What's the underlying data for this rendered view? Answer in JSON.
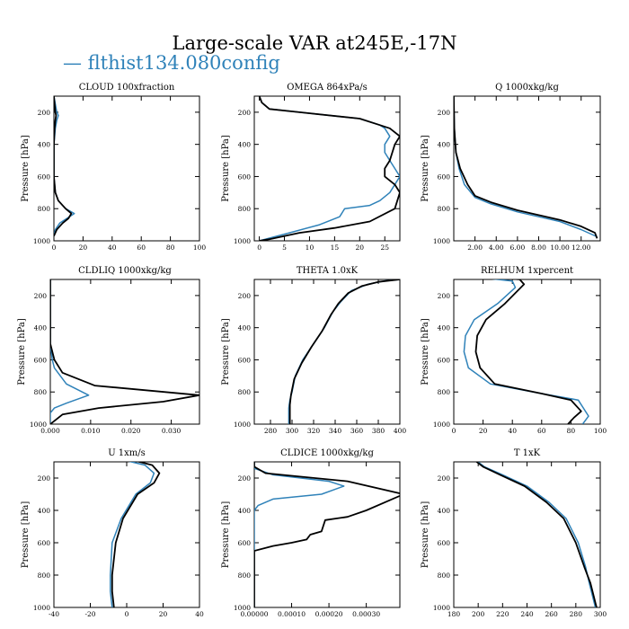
{
  "title": "Large-scale VAR at245E,-17N",
  "legend_label": "— flthist134.080config",
  "colors": {
    "series_a": "#2f82b9",
    "series_b": "#000000"
  },
  "chart_data": [
    {
      "type": "line",
      "title": "CLOUD  100xfraction",
      "ylabel": "Pressure [hPa]",
      "xlim": [
        0,
        100
      ],
      "ylim": [
        1000,
        100
      ],
      "ylog": false,
      "xticks": [
        0,
        20,
        40,
        60,
        80,
        100
      ],
      "xtick_labels": [
        "0",
        "20",
        "40",
        "60",
        "80",
        "100"
      ],
      "yticks": [
        200,
        400,
        600,
        800,
        1000
      ],
      "ytick_labels": [
        "200",
        "400",
        "600",
        "800",
        "1000"
      ],
      "grid": false,
      "series": [
        {
          "name": "flthist134.080config",
          "x": [
            0,
            1,
            2,
            3,
            2,
            1,
            0,
            0,
            1,
            3,
            8,
            14,
            9,
            4,
            1,
            0
          ],
          "y": [
            100,
            150,
            200,
            220,
            250,
            300,
            400,
            600,
            700,
            750,
            800,
            830,
            860,
            890,
            930,
            970
          ]
        },
        {
          "x": [
            0,
            0.5,
            1,
            1.5,
            1,
            0.5,
            0,
            0,
            1,
            3,
            8,
            12,
            10,
            6,
            2,
            0
          ],
          "y": [
            100,
            150,
            200,
            220,
            250,
            300,
            400,
            600,
            700,
            750,
            800,
            830,
            860,
            890,
            930,
            970
          ]
        }
      ]
    },
    {
      "type": "line",
      "title": "OMEGA  864xPa/s",
      "ylabel": "Pressure [hPa]",
      "xlim": [
        -1,
        28
      ],
      "ylim": [
        1000,
        100
      ],
      "xticks": [
        0,
        5,
        10,
        15,
        20,
        25
      ],
      "xtick_labels": [
        "0",
        "5",
        "10",
        "15",
        "20",
        "25"
      ],
      "yticks": [
        200,
        400,
        600,
        800,
        1000
      ],
      "ytick_labels": [
        "200",
        "400",
        "600",
        "800",
        "1000"
      ],
      "grid": false,
      "series": [
        {
          "x": [
            0,
            0.5,
            2,
            8,
            20,
            24,
            25,
            26,
            25,
            25,
            26,
            28,
            26,
            24,
            22,
            17,
            16,
            12,
            6,
            0
          ],
          "y": [
            100,
            140,
            180,
            200,
            240,
            280,
            300,
            350,
            400,
            450,
            500,
            600,
            700,
            750,
            780,
            800,
            850,
            900,
            950,
            1000
          ]
        },
        {
          "x": [
            0,
            0.5,
            2,
            8,
            20,
            24,
            26,
            28,
            27,
            26,
            25,
            25,
            27,
            28,
            27,
            22,
            15,
            8,
            2,
            0
          ],
          "y": [
            100,
            140,
            180,
            200,
            240,
            280,
            300,
            350,
            400,
            500,
            550,
            600,
            650,
            700,
            800,
            880,
            920,
            950,
            990,
            1000
          ]
        }
      ]
    },
    {
      "type": "line",
      "title": "Q  1000xkg/kg",
      "ylabel": "Pressure [hPa]",
      "xlim": [
        0,
        13.8
      ],
      "ylim": [
        1000,
        100
      ],
      "xticks": [
        2,
        4,
        6,
        8,
        10,
        12
      ],
      "xtick_labels": [
        "2.00",
        "4.00",
        "6.00",
        "8.00",
        "10.00",
        "12.00"
      ],
      "yticks": [
        200,
        400,
        600,
        800,
        1000
      ],
      "ytick_labels": [
        "200",
        "400",
        "600",
        "800",
        "1000"
      ],
      "grid": false,
      "series": [
        {
          "x": [
            0,
            0.05,
            0.2,
            0.5,
            1,
            2,
            3.5,
            6,
            8,
            10,
            12,
            13.5
          ],
          "y": [
            100,
            300,
            450,
            550,
            650,
            730,
            770,
            820,
            850,
            880,
            930,
            975
          ]
        },
        {
          "x": [
            0,
            0.05,
            0.2,
            0.6,
            1.3,
            2,
            3.5,
            6,
            8,
            10,
            12,
            13.3,
            13.5
          ],
          "y": [
            100,
            300,
            450,
            550,
            650,
            720,
            760,
            810,
            840,
            870,
            910,
            950,
            985
          ]
        }
      ]
    },
    {
      "type": "line",
      "title": "CLDLIQ  1000xkg/kg",
      "ylabel": "Pressure [hPa]",
      "xlim": [
        0,
        0.037
      ],
      "ylim": [
        1000,
        100
      ],
      "xticks": [
        0,
        0.01,
        0.02,
        0.03
      ],
      "xtick_labels": [
        "0.000",
        "0.010",
        "0.020",
        "0.030"
      ],
      "yticks": [
        200,
        400,
        600,
        800,
        1000
      ],
      "ytick_labels": [
        "200",
        "400",
        "600",
        "800",
        "1000"
      ],
      "grid": false,
      "series": [
        {
          "x": [
            0,
            0,
            0.0005,
            0.001,
            0.004,
            0.0095,
            0.004,
            0.001,
            0,
            0
          ],
          "y": [
            100,
            500,
            600,
            650,
            750,
            820,
            870,
            900,
            930,
            1000
          ]
        },
        {
          "x": [
            0,
            0,
            0.001,
            0.003,
            0.011,
            0.037,
            0.028,
            0.012,
            0.003,
            0
          ],
          "y": [
            100,
            500,
            600,
            680,
            760,
            820,
            860,
            900,
            940,
            1000
          ]
        }
      ]
    },
    {
      "type": "line",
      "title": "THETA  1.0xK",
      "ylabel": "Pressure [hPa]",
      "xlim": [
        265,
        400
      ],
      "ylim": [
        1000,
        100
      ],
      "xticks": [
        280,
        300,
        320,
        340,
        360,
        380,
        400
      ],
      "xtick_labels": [
        "280",
        "300",
        "320",
        "340",
        "360",
        "380",
        "400"
      ],
      "yticks": [
        200,
        400,
        600,
        800,
        1000
      ],
      "ytick_labels": [
        "200",
        "400",
        "600",
        "800",
        "1000"
      ],
      "grid": false,
      "series": [
        {
          "x": [
            400,
            385,
            370,
            355,
            345,
            338,
            330,
            320,
            310,
            303,
            300,
            298,
            297,
            297
          ],
          "y": [
            100,
            110,
            130,
            170,
            240,
            300,
            400,
            500,
            600,
            700,
            800,
            850,
            900,
            1000
          ]
        },
        {
          "x": [
            400,
            380,
            365,
            352,
            343,
            336,
            328,
            318,
            309,
            302,
            299,
            298,
            298
          ],
          "y": [
            100,
            115,
            140,
            185,
            250,
            320,
            420,
            520,
            620,
            720,
            820,
            880,
            1000
          ]
        }
      ]
    },
    {
      "type": "line",
      "title": "RELHUM  1xpercent",
      "ylabel": "Pressure [hPa]",
      "xlim": [
        0,
        100
      ],
      "ylim": [
        1000,
        100
      ],
      "xticks": [
        0,
        20,
        40,
        60,
        80,
        100
      ],
      "xtick_labels": [
        "0",
        "20",
        "40",
        "60",
        "80",
        "100"
      ],
      "yticks": [
        200,
        400,
        600,
        800,
        1000
      ],
      "ytick_labels": [
        "200",
        "400",
        "600",
        "800",
        "1000"
      ],
      "grid": false,
      "series": [
        {
          "x": [
            2,
            20,
            40,
            42,
            30,
            14,
            8,
            7,
            10,
            25,
            60,
            85,
            92,
            88
          ],
          "y": [
            60,
            90,
            110,
            150,
            250,
            350,
            450,
            550,
            650,
            750,
            810,
            850,
            950,
            1000
          ]
        },
        {
          "x": [
            2,
            20,
            45,
            48,
            35,
            22,
            16,
            15,
            18,
            28,
            60,
            80,
            87,
            82,
            78
          ],
          "y": [
            60,
            80,
            100,
            130,
            250,
            350,
            450,
            550,
            650,
            750,
            810,
            850,
            920,
            960,
            1000
          ]
        }
      ]
    },
    {
      "type": "line",
      "title": "U  1xm/s",
      "ylabel": "Pressure [hPa]",
      "xlim": [
        -40,
        40
      ],
      "ylim": [
        1000,
        100
      ],
      "xticks": [
        -40,
        -20,
        0,
        20,
        40
      ],
      "xtick_labels": [
        "-40",
        "-20",
        "0",
        "20",
        "40"
      ],
      "yticks": [
        200,
        400,
        600,
        800,
        1000
      ],
      "ytick_labels": [
        "200",
        "400",
        "600",
        "800",
        "1000"
      ],
      "grid": false,
      "series": [
        {
          "x": [
            -25,
            -20,
            -5,
            10,
            15,
            13,
            5,
            -3,
            -8,
            -9,
            -9,
            -8
          ],
          "y": [
            30,
            50,
            80,
            120,
            170,
            230,
            300,
            450,
            600,
            800,
            900,
            1000
          ]
        },
        {
          "x": [
            -22,
            -15,
            0,
            14,
            18,
            15,
            6,
            -2,
            -6,
            -8,
            -8,
            -7
          ],
          "y": [
            30,
            50,
            80,
            120,
            170,
            230,
            300,
            450,
            600,
            800,
            900,
            1000
          ]
        }
      ]
    },
    {
      "type": "line",
      "title": "CLDICE  1000xkg/kg",
      "ylabel": "Pressure [hPa]",
      "xlim": [
        0,
        0.00039
      ],
      "ylim": [
        1000,
        100
      ],
      "xticks": [
        0,
        0.0001,
        0.0002,
        0.0003
      ],
      "xtick_labels": [
        "0.00000",
        "0.00010",
        "0.00020",
        "0.00030"
      ],
      "yticks": [
        200,
        400,
        600,
        800,
        1000
      ],
      "ytick_labels": [
        "200",
        "400",
        "600",
        "800",
        "1000"
      ],
      "grid": false,
      "series": [
        {
          "x": [
            0,
            0,
            5e-05,
            0.0002,
            0.00024,
            0.00018,
            5e-05,
            1e-05,
            0,
            0,
            0
          ],
          "y": [
            100,
            140,
            180,
            220,
            250,
            300,
            330,
            370,
            400,
            600,
            1000
          ]
        },
        {
          "x": [
            0,
            0,
            3e-05,
            0.00025,
            0.0004,
            0.0003,
            0.00025,
            0.00019,
            0.00018,
            0.00015,
            0.00014,
            0.0001,
            5e-05,
            0,
            0
          ],
          "y": [
            100,
            130,
            170,
            220,
            300,
            400,
            440,
            460,
            530,
            550,
            580,
            600,
            620,
            650,
            1000
          ]
        }
      ]
    },
    {
      "type": "line",
      "title": "T  1xK",
      "ylabel": "Pressure [hPa]",
      "xlim": [
        180,
        300
      ],
      "ylim": [
        1000,
        100
      ],
      "xticks": [
        180,
        200,
        220,
        240,
        260,
        280,
        300
      ],
      "xtick_labels": [
        "180",
        "200",
        "220",
        "240",
        "260",
        "280",
        "300"
      ],
      "yticks": [
        200,
        400,
        600,
        800,
        1000
      ],
      "ytick_labels": [
        "200",
        "400",
        "600",
        "800",
        "1000"
      ],
      "grid": false,
      "series": [
        {
          "x": [
            240,
            215,
            200,
            198,
            205,
            220,
            240,
            258,
            272,
            282,
            288,
            291,
            296
          ],
          "y": [
            30,
            40,
            60,
            90,
            130,
            180,
            250,
            350,
            450,
            600,
            750,
            850,
            1000
          ]
        },
        {
          "x": [
            240,
            212,
            198,
            197,
            204,
            218,
            238,
            256,
            270,
            280,
            287,
            292,
            297
          ],
          "y": [
            30,
            40,
            60,
            90,
            130,
            180,
            250,
            350,
            450,
            600,
            750,
            850,
            1000
          ]
        }
      ]
    }
  ]
}
